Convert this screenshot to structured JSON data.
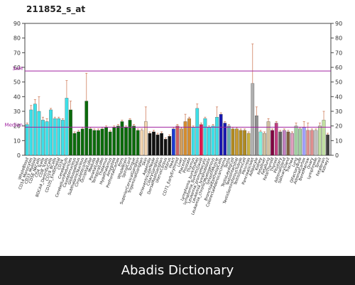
{
  "footer": {
    "watermark": "Abadis Dictionary"
  },
  "chart_data": {
    "type": "bar",
    "title": "211852_s_at",
    "xlabel": "",
    "ylabel": "",
    "ylim": [
      0,
      90
    ],
    "yticks": [
      0,
      10,
      20,
      30,
      40,
      50,
      60,
      70,
      80,
      90
    ],
    "right_yticks": [
      0,
      10,
      20,
      30,
      40,
      50,
      60,
      70,
      80,
      90
    ],
    "grid": false,
    "reference_lines": [
      {
        "label": "3xM",
        "value": 57.5,
        "color": "#a020a0"
      },
      {
        "label": "Median",
        "value": 19.2,
        "color": "#a020a0"
      }
    ],
    "categories": [
      "WholeBlood",
      "CD14_Monocytes",
      "CD33_Myeloid",
      "CD56_NKCells",
      "CD4_Tcells",
      "CD8_Tcells",
      "BDCA4_DentriticCells",
      "CD19_BCells",
      "CD105_Endothelial",
      "CD34_",
      "Cerebellum",
      "CerebellumPeduncles",
      "Caudatenucleus",
      "Globuspallidus",
      "SubthalamicNucleus",
      "Cingulatecortex",
      "OccipitalLobe",
      "Medulla",
      "ParietalLobe",
      "TemporalLobe",
      "Thalamus",
      "Hypothalamus",
      "Amygdala",
      "PrefrontalCortex",
      "Pons",
      "WholeBrain",
      "SpinalCord",
      "Tongue",
      "SuperiorCervicalGanglion",
      "TrigeminalGanglion",
      "Skin",
      "Appendix",
      "AtrioventricularNode",
      "CiliaryGanglion",
      "DorsalRootGanglion",
      "UterusCorpus",
      "Uterus",
      "Heart",
      "CD71_EarlyErythroid",
      "Liver",
      "Placenta",
      "Prostate",
      "Thymus",
      "Lymphoma_burkittsRaji",
      "Lymphoma_burkittsDaudi",
      "Leukemia_promyelocytic",
      "Leukemia_lymphoblastic",
      "Leukemia_chronicMyelogenous",
      "SmoothMuscle",
      "BronchialEpithelialCells",
      "ColorectalAdenocarcinoma",
      "Testis",
      "TestisLeydigCell",
      "TestisIntersitial",
      "TestisSeminiferousTubule",
      "TestisGermCell",
      "Pancreas",
      "PancreaticIslet",
      "Adipocyte",
      "Kidney",
      "Fetalliver",
      "Fetallung",
      "FetalThyroid",
      "Thyroid",
      "Pituitary",
      "AdrenalGland",
      "SalivaryGland",
      "Trachea",
      "Lung",
      "OlfactoryBulb",
      "AdrenalCortex",
      "BoneMarrow",
      "Ovary",
      "Lymphnode",
      "Tonsil",
      "Fetalbrain",
      "Kidney2"
    ],
    "values": [
      21,
      31,
      35,
      30,
      24,
      23,
      31,
      25,
      25,
      24,
      39,
      31,
      15,
      16,
      18,
      37,
      18,
      17,
      17,
      18,
      19,
      16,
      19,
      20,
      23,
      19,
      24,
      20,
      17,
      17,
      23,
      15,
      16,
      14,
      15,
      11,
      13,
      18,
      20,
      18,
      23,
      25,
      19,
      32,
      21,
      25,
      19,
      20,
      26,
      28,
      22,
      20,
      18,
      18,
      17,
      17,
      15,
      49,
      27,
      16,
      15,
      23,
      17,
      22,
      16,
      17,
      16,
      15,
      20,
      18,
      19,
      17,
      17,
      17,
      20,
      24,
      14
    ],
    "error_high": [
      22,
      34,
      38,
      40,
      26,
      25,
      32,
      26,
      26,
      25,
      51,
      37,
      16,
      17,
      19,
      56,
      19,
      18,
      18,
      19,
      20,
      17,
      20,
      21,
      24,
      20,
      25,
      21,
      18,
      18,
      33,
      16,
      17,
      15,
      16,
      12,
      14,
      19,
      21,
      19,
      28,
      26,
      20,
      35,
      22,
      26,
      20,
      21,
      33,
      29,
      23,
      21,
      19,
      19,
      18,
      18,
      16,
      76,
      33,
      17,
      16,
      25,
      18,
      23,
      17,
      18,
      17,
      16,
      22,
      19,
      23,
      22,
      18,
      18,
      22,
      30,
      15
    ],
    "colors": [
      "#3de0e8",
      "#3de0e8",
      "#3de0e8",
      "#3de0e8",
      "#3de0e8",
      "#3de0e8",
      "#3de0e8",
      "#3de0e8",
      "#3de0e8",
      "#3de0e8",
      "#3de0e8",
      "#0b6b0b",
      "#0b6b0b",
      "#0b6b0b",
      "#0b6b0b",
      "#0b6b0b",
      "#0b6b0b",
      "#0b6b0b",
      "#0b6b0b",
      "#0b6b0b",
      "#0b6b0b",
      "#0b6b0b",
      "#0b6b0b",
      "#0b6b0b",
      "#0b6b0b",
      "#0b6b0b",
      "#0b6b0b",
      "#0b6b0b",
      "#0b6b0b",
      "#f2d4b0",
      "#f2d4b0",
      "#111111",
      "#111111",
      "#111111",
      "#111111",
      "#111111",
      "#111111",
      "#1a3bd6",
      "#d06060",
      "#d4a060",
      "#d48c30",
      "#d48c30",
      "#3de0e8",
      "#3de0e8",
      "#e01a4f",
      "#3de0e8",
      "#3de0e8",
      "#3de0e8",
      "#3de0e8",
      "#1a1ab0",
      "#1a1ab0",
      "#6ab0b0",
      "#b08a20",
      "#c89a30",
      "#b08a20",
      "#b08a20",
      "#c8b040",
      "#b0b0b0",
      "#909090",
      "#80f0e0",
      "#d0c0a0",
      "#d0c0a0",
      "#800040",
      "#c04080",
      "#606060",
      "#c080c0",
      "#806040",
      "#e0a0c0",
      "#a0d0a0",
      "#a0d0a0",
      "#a0a0ff",
      "#e09090",
      "#e09090",
      "#c0c0c0",
      "#c0e0a0",
      "#c0e0a0",
      "#404040"
    ]
  }
}
